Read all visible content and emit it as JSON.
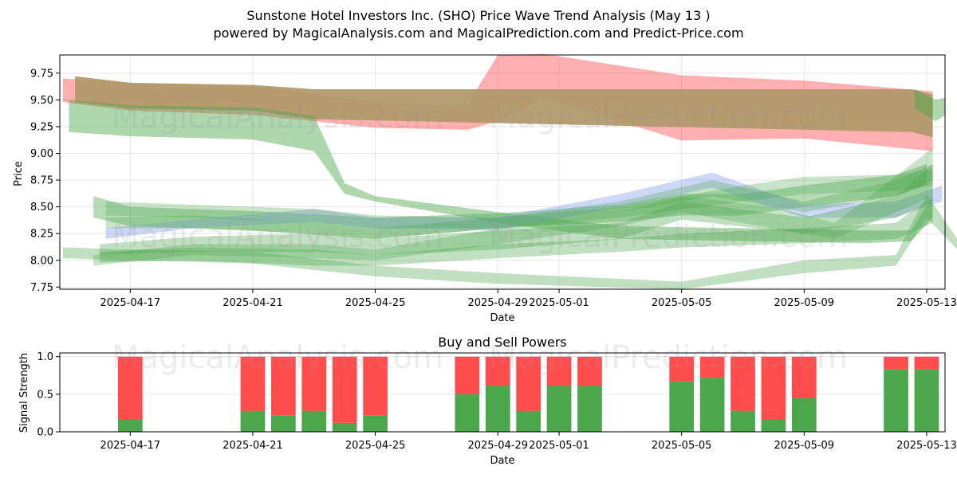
{
  "title_line1": "Sunstone Hotel Investors Inc. (SHO) Price Wave Trend Analysis (May 13 )",
  "title_line2": "powered by MagicalAnalysis.com and MagicalPrediction.com and Predict-Price.com",
  "watermarks": [
    "MagicalAnalysis.com",
    "MagicalPrediction.com"
  ],
  "colors": {
    "red": "#ff4d4d",
    "green": "#4ca64c",
    "blue": "#8fa8e8"
  },
  "chart_data": [
    {
      "type": "area",
      "title": "",
      "xlabel": "Date",
      "ylabel": "Price",
      "ylim": [
        7.73,
        9.92
      ],
      "yticks": [
        "7.75",
        "8.00",
        "8.25",
        "8.50",
        "8.75",
        "9.00",
        "9.25",
        "9.50",
        "9.75"
      ],
      "ytick_values": [
        7.75,
        8.0,
        8.25,
        8.5,
        8.75,
        9.0,
        9.25,
        9.5,
        9.75
      ],
      "xticks": [
        "2025-04-17",
        "2025-04-21",
        "2025-04-25",
        "2025-04-29",
        "2025-05-01",
        "2025-05-05",
        "2025-05-09",
        "2025-05-13"
      ],
      "xtick_values": [
        2,
        6,
        10,
        14,
        16,
        20,
        24,
        28
      ],
      "xlim": [
        -0.3,
        28.6
      ],
      "x_unit": "days since 2025-04-15",
      "grid": true,
      "series": [
        {
          "name": "red band",
          "color": "red",
          "opacity": 0.45,
          "points": [
            [
              -0.2,
              9.7,
              9.48
            ],
            [
              2,
              9.66,
              9.4
            ],
            [
              6,
              9.63,
              9.36
            ],
            [
              10,
              9.48,
              9.24
            ],
            [
              13,
              9.45,
              9.22
            ],
            [
              14,
              9.92,
              9.3
            ],
            [
              15.5,
              9.93,
              9.52
            ],
            [
              20,
              9.73,
              9.12
            ],
            [
              24,
              9.68,
              9.14
            ],
            [
              28.2,
              9.58,
              9.02
            ]
          ]
        },
        {
          "name": "brown band",
          "color": "#b29a6a",
          "opacity": 0.95,
          "points": [
            [
              0.2,
              9.72,
              9.48
            ],
            [
              2,
              9.66,
              9.42
            ],
            [
              6,
              9.64,
              9.4
            ],
            [
              8,
              9.6,
              9.32
            ],
            [
              27.5,
              9.6,
              9.2
            ],
            [
              28.2,
              9.55,
              9.15
            ]
          ]
        },
        {
          "name": "green band 1",
          "color": "green",
          "opacity": 0.45,
          "points": [
            [
              0,
              9.5,
              9.2
            ],
            [
              2,
              9.45,
              9.16
            ],
            [
              6,
              9.43,
              9.13
            ],
            [
              8,
              9.35,
              9.02
            ],
            [
              9,
              8.72,
              8.62
            ],
            [
              10,
              8.6,
              8.55
            ],
            [
              14,
              8.45,
              8.35
            ],
            [
              18,
              8.32,
              8.2
            ],
            [
              22,
              8.3,
              8.18
            ],
            [
              26,
              8.28,
              8.16
            ],
            [
              27.5,
              8.28,
              8.18
            ],
            [
              28.2,
              8.6,
              8.4
            ]
          ]
        },
        {
          "name": "green band 2",
          "color": "green",
          "opacity": 0.4,
          "points": [
            [
              0.8,
              8.6,
              8.4
            ],
            [
              2,
              8.5,
              8.32
            ],
            [
              6,
              8.46,
              8.28
            ],
            [
              10,
              8.4,
              8.2
            ],
            [
              14,
              8.44,
              8.3
            ],
            [
              18,
              8.52,
              8.36
            ],
            [
              20,
              8.62,
              8.42
            ],
            [
              22,
              8.62,
              8.42
            ],
            [
              24,
              8.7,
              8.5
            ],
            [
              27,
              8.8,
              8.6
            ],
            [
              28,
              8.9,
              8.7
            ]
          ]
        },
        {
          "name": "blue band",
          "color": "blue",
          "opacity": 0.45,
          "points": [
            [
              1.2,
              8.3,
              8.2
            ],
            [
              4,
              8.38,
              8.3
            ],
            [
              8,
              8.48,
              8.36
            ],
            [
              10,
              8.4,
              8.3
            ],
            [
              14,
              8.4,
              8.28
            ],
            [
              18,
              8.62,
              8.5
            ],
            [
              21,
              8.82,
              8.68
            ],
            [
              24,
              8.52,
              8.4
            ],
            [
              27,
              8.55,
              8.4
            ],
            [
              28.5,
              8.7,
              8.55
            ]
          ]
        },
        {
          "name": "green band 3",
          "color": "green",
          "opacity": 0.35,
          "points": [
            [
              1.0,
              8.15,
              8.05
            ],
            [
              4,
              8.22,
              8.08
            ],
            [
              8,
              8.25,
              8.08
            ],
            [
              10,
              8.2,
              8.05
            ],
            [
              14,
              8.28,
              8.1
            ],
            [
              18,
              8.35,
              8.2
            ],
            [
              20,
              8.55,
              8.38
            ],
            [
              24,
              8.4,
              8.25
            ],
            [
              27,
              8.6,
              8.4
            ],
            [
              28.2,
              8.9,
              8.55
            ]
          ]
        },
        {
          "name": "green band 4",
          "color": "green",
          "opacity": 0.35,
          "points": [
            [
              1.0,
              8.08,
              7.98
            ],
            [
              4,
              8.12,
              8.0
            ],
            [
              8,
              8.1,
              7.95
            ],
            [
              10,
              8.05,
              7.95
            ],
            [
              14,
              8.15,
              8.02
            ],
            [
              18,
              8.2,
              8.08
            ],
            [
              20,
              8.25,
              8.12
            ],
            [
              24,
              8.3,
              8.16
            ],
            [
              27,
              8.35,
              8.2
            ],
            [
              28.2,
              8.6,
              8.35
            ]
          ]
        },
        {
          "name": "green band 5",
          "color": "green",
          "opacity": 0.35,
          "points": [
            [
              -0.2,
              8.12,
              8.02
            ],
            [
              2,
              8.1,
              8.0
            ],
            [
              6,
              8.08,
              7.97
            ],
            [
              10,
              7.95,
              7.85
            ],
            [
              14,
              7.88,
              7.78
            ],
            [
              20,
              7.8,
              7.73
            ],
            [
              24,
              8.0,
              7.88
            ],
            [
              27,
              8.05,
              7.95
            ],
            [
              28,
              8.62,
              8.4
            ],
            [
              29,
              8.2,
              8.1
            ]
          ]
        },
        {
          "name": "green band 6",
          "color": "green",
          "opacity": 0.3,
          "points": [
            [
              1.2,
              8.55,
              8.42
            ],
            [
              4,
              8.52,
              8.4
            ],
            [
              8,
              8.48,
              8.35
            ],
            [
              10,
              8.42,
              8.3
            ],
            [
              14,
              8.4,
              8.3
            ],
            [
              18,
              8.5,
              8.4
            ],
            [
              22,
              8.7,
              8.55
            ],
            [
              24,
              8.78,
              8.62
            ],
            [
              27,
              8.8,
              8.65
            ],
            [
              28.2,
              8.85,
              8.7
            ]
          ]
        },
        {
          "name": "green band 7",
          "color": "green",
          "opacity": 0.3,
          "points": [
            [
              0.8,
              8.05,
              7.95
            ],
            [
              4,
              8.15,
              8.05
            ],
            [
              8,
              8.15,
              8.02
            ],
            [
              10,
              8.1,
              8.0
            ],
            [
              14,
              8.3,
              8.15
            ],
            [
              18,
              8.45,
              8.32
            ],
            [
              20,
              8.6,
              8.45
            ],
            [
              23,
              8.5,
              8.3
            ],
            [
              25,
              8.35,
              8.2
            ],
            [
              28.2,
              9.05,
              8.6
            ]
          ]
        },
        {
          "name": "green band 8",
          "color": "green",
          "opacity": 0.3,
          "points": [
            [
              1.2,
              8.4,
              8.3
            ],
            [
              4,
              8.42,
              8.3
            ],
            [
              8,
              8.35,
              8.25
            ],
            [
              10,
              8.3,
              8.2
            ],
            [
              14,
              8.4,
              8.3
            ],
            [
              18,
              8.55,
              8.45
            ],
            [
              21,
              8.75,
              8.6
            ],
            [
              24,
              8.55,
              8.45
            ],
            [
              27,
              8.75,
              8.6
            ],
            [
              28.2,
              8.9,
              8.75
            ]
          ]
        },
        {
          "name": "green band 9",
          "color": "green",
          "opacity": 0.45,
          "points": [
            [
              27.6,
              9.6,
              9.42
            ],
            [
              28.3,
              9.5,
              9.3
            ],
            [
              28.6,
              9.52,
              9.36
            ]
          ]
        }
      ]
    },
    {
      "type": "bar",
      "title": "Buy and Sell Powers",
      "xlabel": "Date",
      "ylabel": "Signal Strength",
      "ylim": [
        0,
        1.05
      ],
      "yticks": [
        "0.0",
        "0.5",
        "1.0"
      ],
      "ytick_values": [
        0,
        0.5,
        1.0
      ],
      "xticks": [
        "2025-04-17",
        "2025-04-21",
        "2025-04-25",
        "2025-04-29",
        "2025-05-01",
        "2025-05-05",
        "2025-05-09",
        "2025-05-13"
      ],
      "xtick_values": [
        2,
        6,
        10,
        14,
        16,
        20,
        24,
        28
      ],
      "xlim": [
        -0.3,
        28.6
      ],
      "grid": true,
      "series": [
        {
          "name": "Buy",
          "color": "green"
        },
        {
          "name": "Sell",
          "color": "red"
        }
      ],
      "x": [
        2,
        6,
        7,
        8,
        9,
        10,
        13,
        14,
        15,
        16,
        17,
        20,
        21,
        22,
        23,
        24,
        27,
        28
      ],
      "buy": [
        0.17,
        0.28,
        0.22,
        0.28,
        0.12,
        0.22,
        0.5,
        0.61,
        0.28,
        0.61,
        0.61,
        0.67,
        0.72,
        0.28,
        0.17,
        0.45,
        0.83,
        0.83
      ],
      "total": 1.0
    }
  ]
}
